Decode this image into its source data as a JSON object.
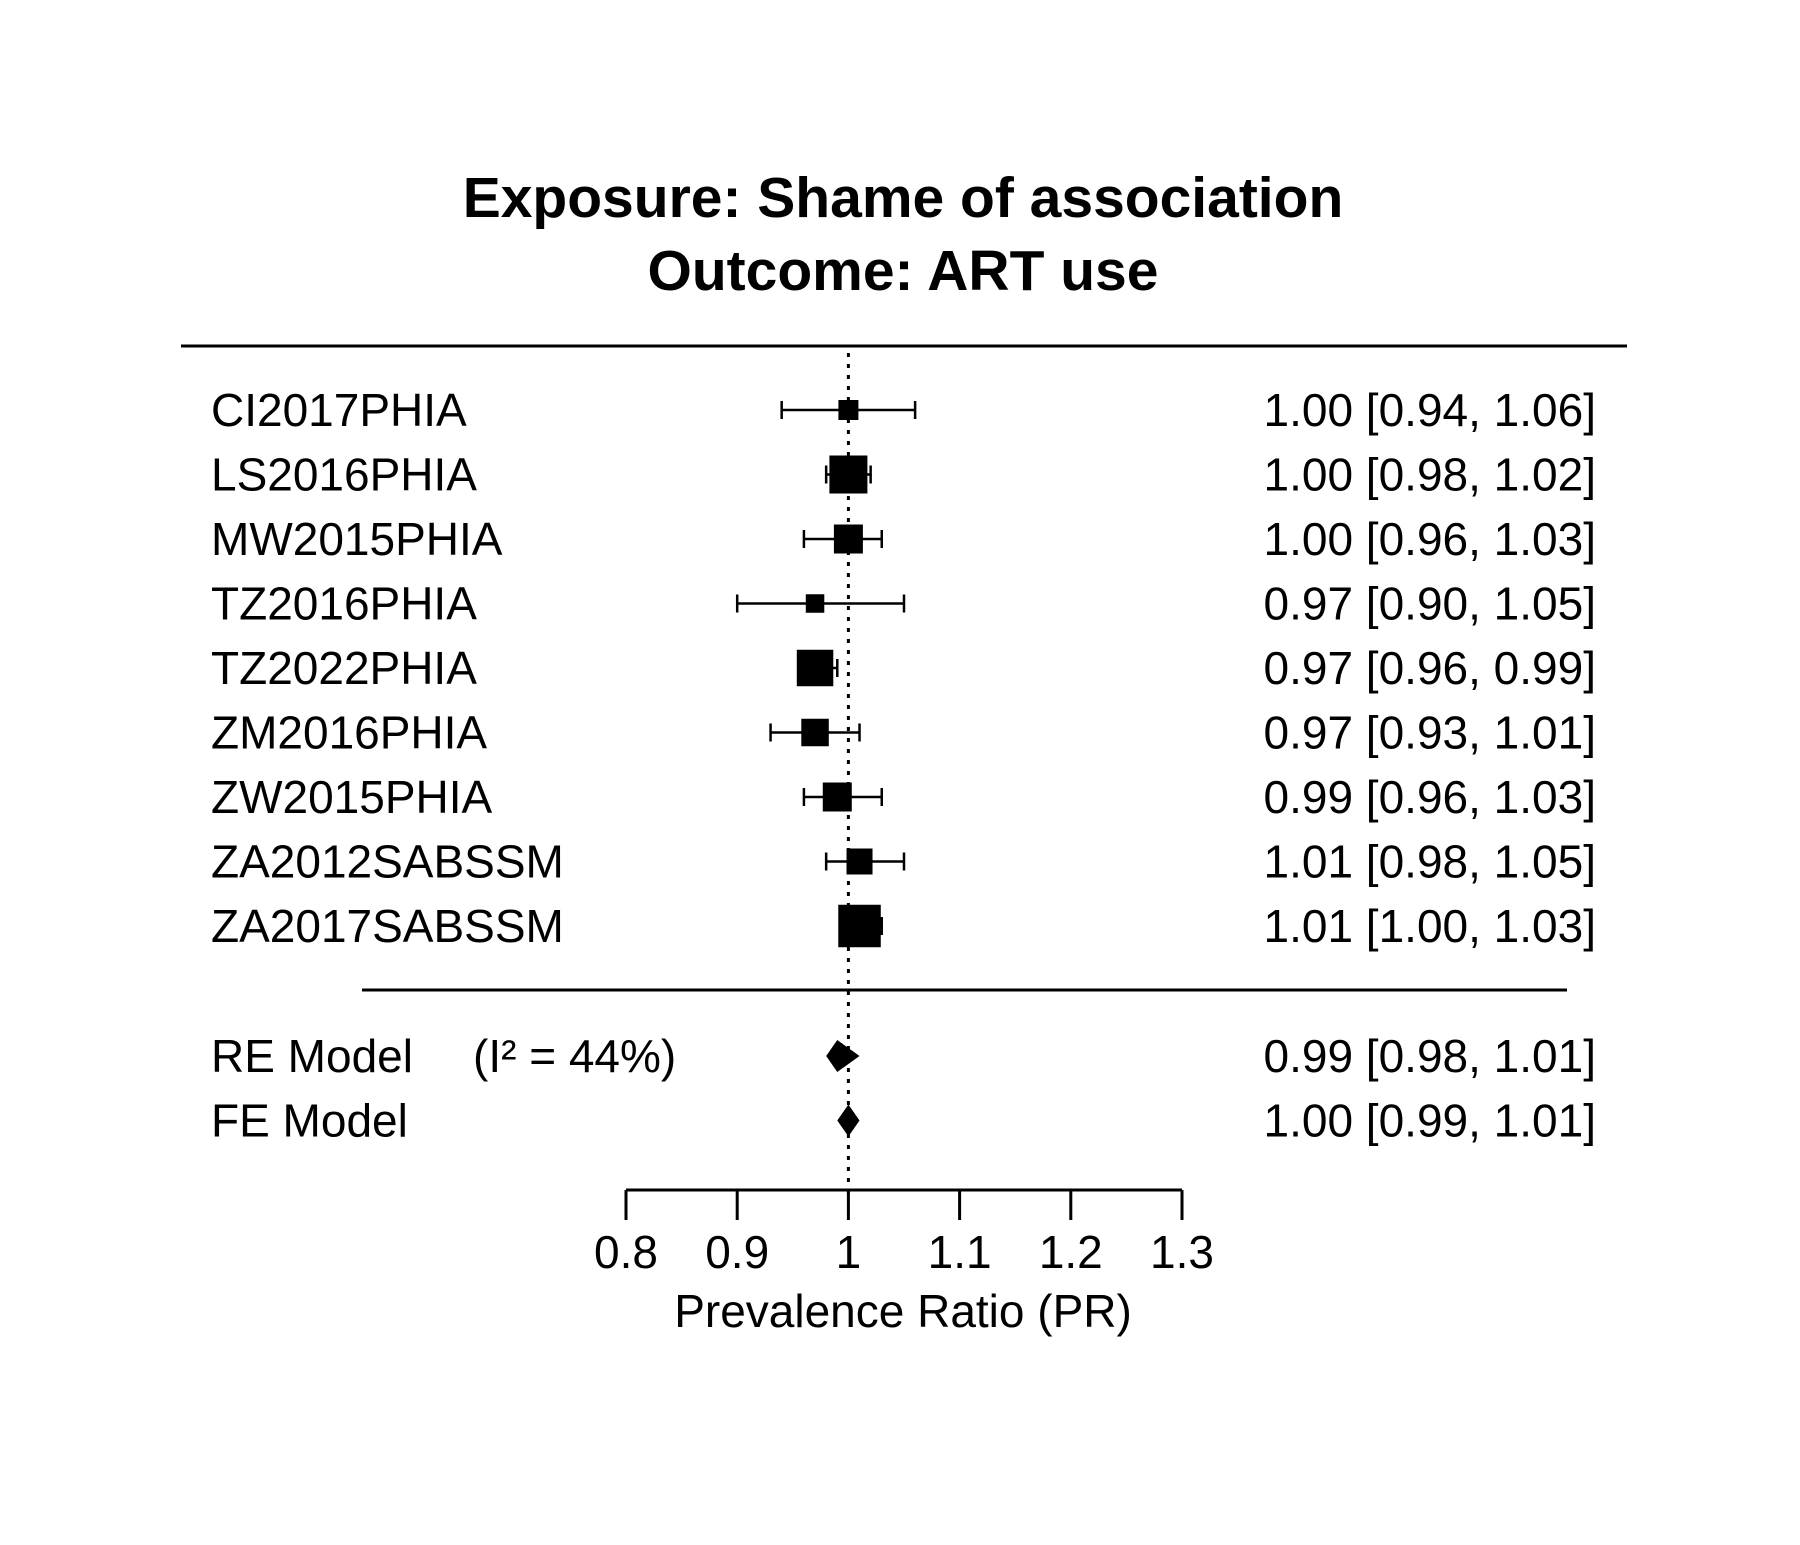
{
  "chart_data": {
    "type": "forest",
    "title_lines": [
      "Exposure: Shame of association",
      "Outcome: ART use"
    ],
    "xlabel": "Prevalence Ratio (PR)",
    "xlim": [
      0.8,
      1.3
    ],
    "ticks": [
      0.8,
      0.9,
      1.0,
      1.1,
      1.2,
      1.3
    ],
    "tick_labels": [
      "0.8",
      "0.9",
      "1",
      "1.1",
      "1.2",
      "1.3"
    ],
    "reference_line": 1.0,
    "studies": [
      {
        "label": "CI2017PHIA",
        "est": 1.0,
        "lo": 0.94,
        "hi": 1.06,
        "text": "1.00 [0.94, 1.06]",
        "weight": 0.4
      },
      {
        "label": "LS2016PHIA",
        "est": 1.0,
        "lo": 0.98,
        "hi": 1.02,
        "text": "1.00 [0.98, 1.02]",
        "weight": 1.0
      },
      {
        "label": "MW2015PHIA",
        "est": 1.0,
        "lo": 0.96,
        "hi": 1.03,
        "text": "1.00 [0.96, 1.03]",
        "weight": 0.7
      },
      {
        "label": "TZ2016PHIA",
        "est": 0.97,
        "lo": 0.9,
        "hi": 1.05,
        "text": "0.97 [0.90, 1.05]",
        "weight": 0.35
      },
      {
        "label": "TZ2022PHIA",
        "est": 0.97,
        "lo": 0.96,
        "hi": 0.99,
        "text": "0.97 [0.96, 0.99]",
        "weight": 0.95
      },
      {
        "label": "ZM2016PHIA",
        "est": 0.97,
        "lo": 0.93,
        "hi": 1.01,
        "text": "0.97 [0.93, 1.01]",
        "weight": 0.65
      },
      {
        "label": "ZW2015PHIA",
        "est": 0.99,
        "lo": 0.96,
        "hi": 1.03,
        "text": "0.99 [0.96, 1.03]",
        "weight": 0.7
      },
      {
        "label": "ZA2012SABSSM",
        "est": 1.01,
        "lo": 0.98,
        "hi": 1.05,
        "text": "1.01 [0.98, 1.05]",
        "weight": 0.6
      },
      {
        "label": "ZA2017SABSSM",
        "est": 1.01,
        "lo": 1.0,
        "hi": 1.03,
        "text": "1.01 [1.00, 1.03]",
        "weight": 1.15
      }
    ],
    "models": [
      {
        "label": "RE Model",
        "extra": "(I² = 44%)",
        "est": 0.99,
        "lo": 0.98,
        "hi": 1.01,
        "text": "0.99 [0.98, 1.01]"
      },
      {
        "label": "FE Model",
        "extra": "",
        "est": 1.0,
        "lo": 0.99,
        "hi": 1.01,
        "text": "1.00 [0.99, 1.01]"
      }
    ]
  }
}
